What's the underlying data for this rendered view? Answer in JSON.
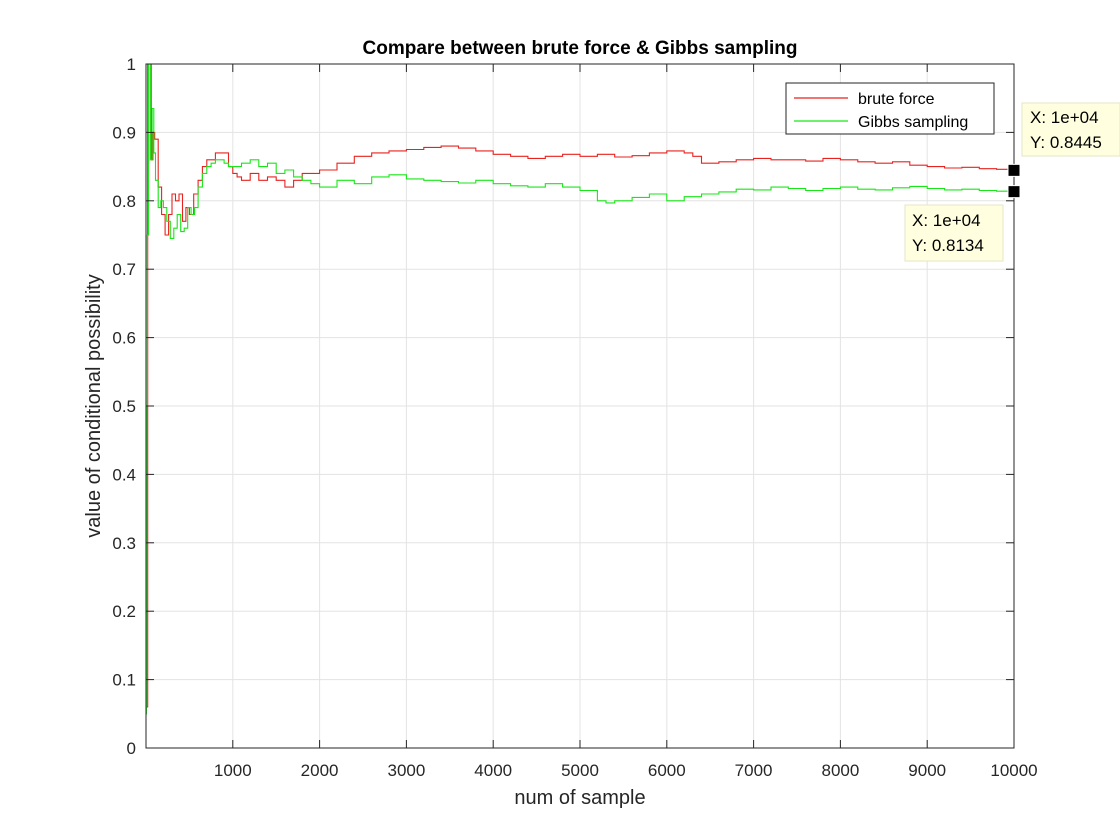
{
  "chart_data": {
    "type": "line",
    "title": "Compare between brute force & Gibbs sampling",
    "xlabel": "num of sample",
    "ylabel": "value of conditional possibility",
    "xlim": [
      0,
      10000
    ],
    "ylim": [
      0,
      1
    ],
    "x_ticks": [
      "1000",
      "2000",
      "3000",
      "4000",
      "5000",
      "6000",
      "7000",
      "8000",
      "9000",
      "10000"
    ],
    "y_ticks": [
      "0",
      "0.1",
      "0.2",
      "0.3",
      "0.4",
      "0.5",
      "0.6",
      "0.7",
      "0.8",
      "0.9",
      "1"
    ],
    "grid": true,
    "legend_position": "top-right",
    "series": [
      {
        "name": "brute force",
        "color": "#e8231f",
        "x": [
          1,
          5,
          20,
          40,
          60,
          80,
          100,
          140,
          180,
          220,
          260,
          300,
          340,
          380,
          420,
          460,
          500,
          550,
          600,
          650,
          700,
          750,
          800,
          850,
          900,
          950,
          1000,
          1050,
          1100,
          1200,
          1300,
          1400,
          1500,
          1600,
          1700,
          1800,
          1900,
          2000,
          2200,
          2400,
          2600,
          2800,
          3000,
          3200,
          3400,
          3600,
          3800,
          4000,
          4200,
          4400,
          4600,
          4800,
          5000,
          5200,
          5400,
          5600,
          5800,
          6000,
          6200,
          6300,
          6400,
          6600,
          6800,
          7000,
          7200,
          7400,
          7600,
          7800,
          8000,
          8200,
          8400,
          8600,
          8800,
          9000,
          9200,
          9400,
          9600,
          9800,
          10000
        ],
        "y": [
          0.06,
          0.06,
          1.0,
          1.0,
          0.86,
          0.9,
          0.89,
          0.82,
          0.78,
          0.75,
          0.78,
          0.81,
          0.8,
          0.81,
          0.77,
          0.79,
          0.78,
          0.81,
          0.83,
          0.85,
          0.86,
          0.86,
          0.87,
          0.87,
          0.87,
          0.85,
          0.84,
          0.835,
          0.83,
          0.84,
          0.83,
          0.835,
          0.83,
          0.82,
          0.83,
          0.84,
          0.84,
          0.845,
          0.855,
          0.865,
          0.87,
          0.873,
          0.875,
          0.878,
          0.88,
          0.877,
          0.873,
          0.868,
          0.865,
          0.862,
          0.865,
          0.868,
          0.865,
          0.868,
          0.864,
          0.866,
          0.87,
          0.873,
          0.87,
          0.865,
          0.855,
          0.857,
          0.86,
          0.862,
          0.86,
          0.86,
          0.858,
          0.862,
          0.86,
          0.857,
          0.855,
          0.857,
          0.852,
          0.85,
          0.848,
          0.849,
          0.847,
          0.846,
          0.8445
        ]
      },
      {
        "name": "Gibbs sampling",
        "color": "#19e619",
        "x": [
          1,
          5,
          15,
          30,
          50,
          70,
          90,
          110,
          140,
          170,
          200,
          240,
          280,
          320,
          360,
          400,
          440,
          480,
          520,
          560,
          600,
          650,
          700,
          750,
          800,
          850,
          900,
          950,
          1000,
          1100,
          1200,
          1300,
          1400,
          1500,
          1600,
          1700,
          1800,
          1900,
          2000,
          2200,
          2400,
          2600,
          2800,
          3000,
          3200,
          3400,
          3600,
          3800,
          4000,
          4200,
          4400,
          4600,
          4800,
          5000,
          5200,
          5300,
          5400,
          5600,
          5800,
          6000,
          6200,
          6400,
          6600,
          6800,
          7000,
          7200,
          7400,
          7600,
          7800,
          8000,
          8200,
          8400,
          8600,
          8800,
          9000,
          9200,
          9400,
          9600,
          9800,
          10000
        ],
        "y": [
          0.05,
          0.5,
          0.75,
          1.0,
          0.86,
          0.935,
          0.87,
          0.83,
          0.79,
          0.8,
          0.79,
          0.77,
          0.745,
          0.76,
          0.78,
          0.755,
          0.76,
          0.79,
          0.78,
          0.79,
          0.82,
          0.84,
          0.85,
          0.855,
          0.86,
          0.86,
          0.855,
          0.85,
          0.85,
          0.855,
          0.86,
          0.85,
          0.855,
          0.84,
          0.845,
          0.835,
          0.83,
          0.825,
          0.82,
          0.83,
          0.825,
          0.835,
          0.838,
          0.832,
          0.83,
          0.828,
          0.826,
          0.83,
          0.825,
          0.822,
          0.82,
          0.825,
          0.82,
          0.815,
          0.8,
          0.797,
          0.8,
          0.805,
          0.81,
          0.8,
          0.806,
          0.81,
          0.813,
          0.817,
          0.816,
          0.82,
          0.818,
          0.815,
          0.818,
          0.82,
          0.817,
          0.816,
          0.819,
          0.821,
          0.818,
          0.816,
          0.817,
          0.815,
          0.814,
          0.8134
        ]
      }
    ],
    "datatips": [
      {
        "x_text": "X: 1e+04",
        "y_text": "Y: 0.8445",
        "x": 10000,
        "y": 0.8445,
        "series": "brute force"
      },
      {
        "x_text": "X: 1e+04",
        "y_text": "Y: 0.8134",
        "x": 10000,
        "y": 0.8134,
        "series": "Gibbs sampling"
      }
    ]
  }
}
